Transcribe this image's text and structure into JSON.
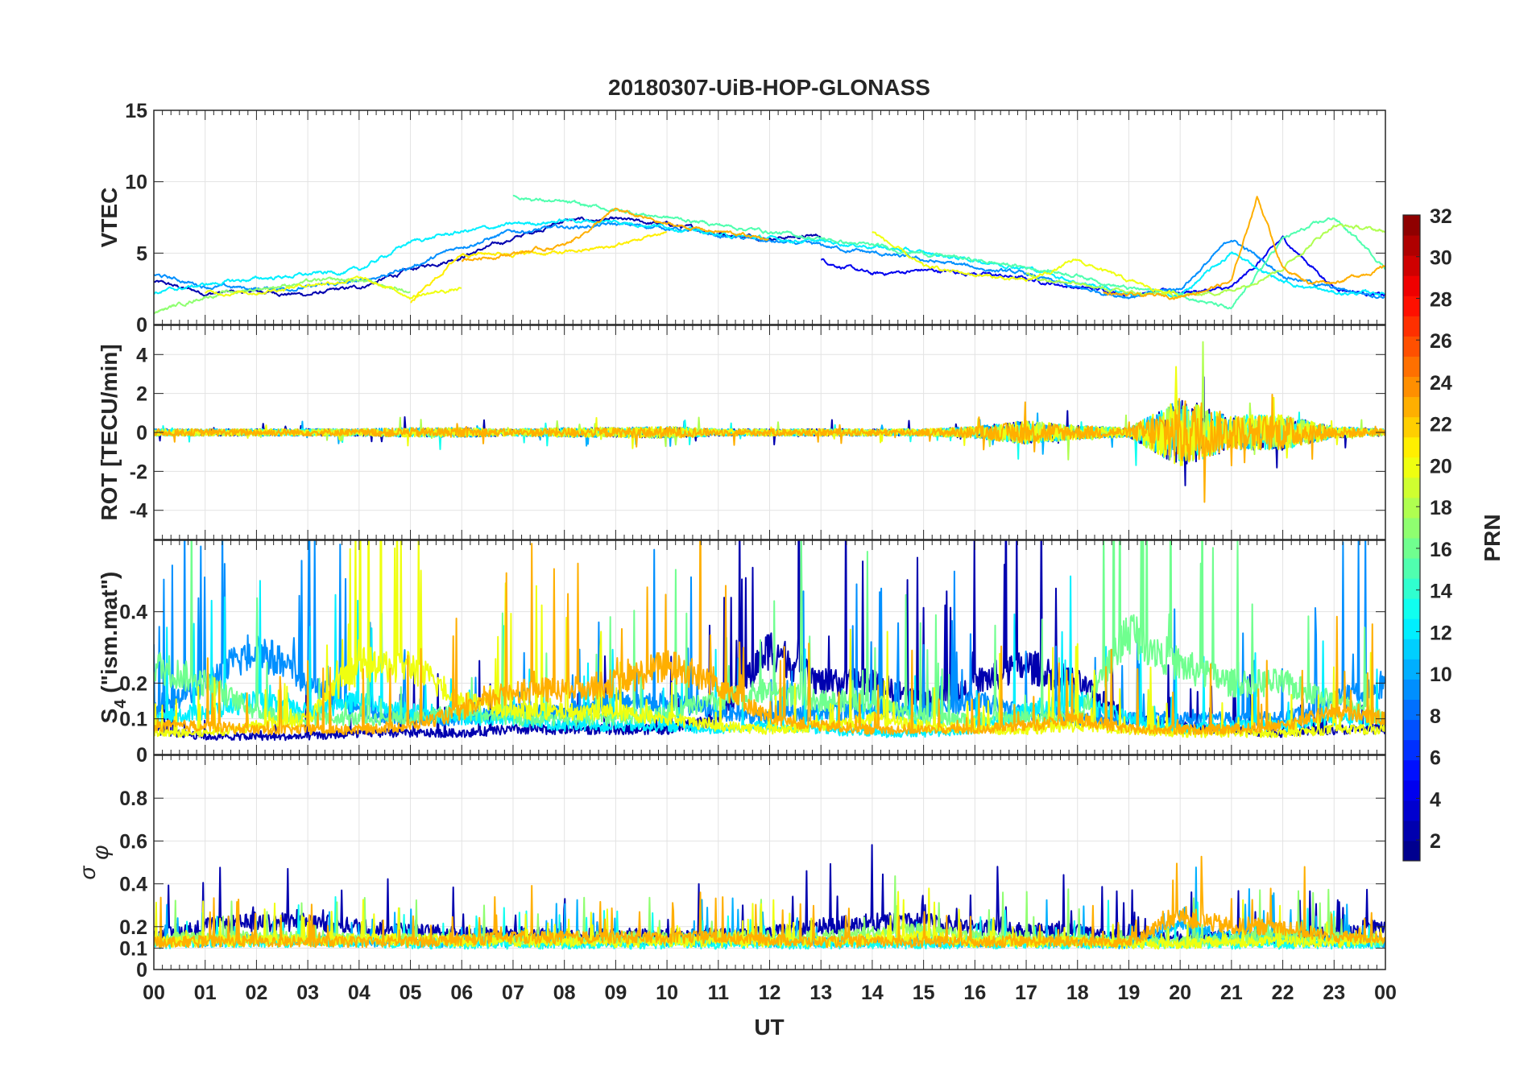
{
  "chart_data": {
    "type": "line",
    "title": "20180307-UiB-HOP-GLONASS",
    "xlabel": "UT",
    "x_range": [
      0,
      24
    ],
    "x_ticks": [
      "00",
      "01",
      "02",
      "03",
      "04",
      "05",
      "06",
      "07",
      "08",
      "09",
      "10",
      "11",
      "12",
      "13",
      "14",
      "15",
      "16",
      "17",
      "18",
      "19",
      "20",
      "21",
      "22",
      "23",
      "00"
    ],
    "grid": true,
    "colorbar": {
      "label": "PRN",
      "range": [
        1,
        32
      ],
      "colormap": "jet",
      "levels": 32,
      "ticks": [
        "2",
        "4",
        "6",
        "8",
        "10",
        "12",
        "14",
        "16",
        "18",
        "20",
        "22",
        "24",
        "26",
        "28",
        "30",
        "32"
      ],
      "placement": "right"
    },
    "panels": [
      {
        "name": "VTEC",
        "ylabel": "VTEC",
        "ylim": [
          0,
          15
        ],
        "yticks": [
          0,
          5,
          10,
          15
        ],
        "series": [
          {
            "prn": 2,
            "x0": 0,
            "dx": 1,
            "y": [
              3,
              2.2,
              2.3,
              2.1,
              2.6,
              3.8,
              4.8,
              6,
              7.3,
              7.3,
              7,
              6.4,
              6.1,
              6.2
            ]
          },
          {
            "prn": 4,
            "x0": 13,
            "dx": 1,
            "y": [
              4.5,
              3.5,
              3.8,
              3.6,
              3.2,
              2.6,
              2.2,
              2.3,
              2.5,
              6,
              2.6,
              2,
              2.2
            ]
          },
          {
            "prn": 9,
            "x0": 0,
            "dx": 1,
            "y": [
              3.5,
              2.7,
              2.5,
              2.6,
              3,
              4,
              5.5,
              6.5,
              6.8,
              7,
              6.8,
              6.2,
              5.8,
              5.5,
              5,
              4.5,
              4,
              3.5,
              2.5,
              2,
              2.5,
              6,
              3.5,
              2.5,
              2
            ]
          },
          {
            "prn": 12,
            "x0": 0,
            "dx": 1,
            "y": [
              2.2,
              2.8,
              3.2,
              3.5,
              3.8,
              5.8,
              6.5,
              7,
              7.3,
              7.2,
              6.9,
              6.3,
              6,
              5.8,
              5.5,
              5,
              4.5,
              4,
              3,
              2.2,
              2,
              5,
              3,
              2.2,
              2.2
            ]
          },
          {
            "prn": 15,
            "x0": 7,
            "dx": 1,
            "y": [
              9,
              8.5,
              8,
              7.5,
              7,
              6.5,
              6,
              5.5,
              5,
              4.5,
              4,
              3.5,
              2.5,
              2.2,
              1,
              6,
              7.5,
              4,
              2.6
            ]
          },
          {
            "prn": 17,
            "x0": 0,
            "dx": 1,
            "y": [
              0.8,
              2,
              2.5,
              3,
              3.1,
              2.3
            ]
          },
          {
            "prn": 18,
            "x0": 17,
            "dx": 1,
            "y": [
              3.5,
              2.8,
              2.2,
              2,
              2.4,
              4,
              7,
              6.5
            ]
          },
          {
            "prn": 20,
            "x0": 1,
            "dx": 1,
            "y": [
              2.2,
              2.3,
              2.8,
              3.2,
              2,
              2.5
            ]
          },
          {
            "prn": 21,
            "x0": 5,
            "dx": 1,
            "y": [
              1.5,
              5,
              5,
              5,
              5.5,
              6.5
            ]
          },
          {
            "prn": 20,
            "x0": 14,
            "dx": 1,
            "y": [
              6.5,
              4,
              3.5,
              3,
              4.5,
              3,
              2
            ]
          },
          {
            "prn": 23,
            "x0": 6,
            "dx": 1,
            "y": [
              4.5,
              5,
              5.5,
              8,
              7,
              6.5,
              6
            ]
          },
          {
            "prn": 23,
            "x0": 18.5,
            "dx": 0.5,
            "y": [
              2.2,
              2,
              2,
              2,
              2.5,
              3,
              9,
              4,
              3,
              3,
              3.5,
              4
            ]
          }
        ]
      },
      {
        "name": "ROT",
        "ylabel": "ROT [TECU/min]",
        "ylim": [
          -5.5,
          5.5
        ],
        "yticks": [
          -4,
          -2,
          0,
          2,
          4
        ],
        "envelope_hourly": [
          0.3,
          0.3,
          0.3,
          0.3,
          0.3,
          0.4,
          0.4,
          0.3,
          0.4,
          0.4,
          0.5,
          0.3,
          0.3,
          0.3,
          0.3,
          0.3,
          0.5,
          1,
          0.6,
          0.4,
          3,
          1.5,
          1.5,
          0.5,
          0.3
        ],
        "series_prns": [
          2,
          10,
          13,
          18,
          20,
          23
        ]
      },
      {
        "name": "S4",
        "ylabel": "S4 (\"ism.mat\")",
        "ylim": [
          0,
          0.6
        ],
        "yticks": [
          0,
          0.1,
          0.2,
          0.4
        ],
        "series": [
          {
            "prn": 2,
            "x0": 0,
            "dx": 1,
            "y": [
              0.07,
              0.05,
              0.05,
              0.05,
              0.06,
              0.06,
              0.06,
              0.07,
              0.07,
              0.07,
              0.07,
              0.1,
              0.3,
              0.2,
              0.2,
              0.15,
              0.2,
              0.25,
              0.2,
              0.1,
              0.08,
              0.07,
              0.06,
              0.07,
              0.07
            ]
          },
          {
            "prn": 9,
            "x0": 0,
            "dx": 1,
            "y": [
              0.12,
              0.2,
              0.3,
              0.2,
              0.12,
              0.1,
              0.1,
              0.12,
              0.12,
              0.15,
              0.15,
              0.12,
              0.1,
              0.12,
              0.12,
              0.12,
              0.15,
              0.12,
              0.1,
              0.1,
              0.1,
              0.1,
              0.1,
              0.15,
              0.2
            ]
          },
          {
            "prn": 12,
            "x0": 0,
            "dx": 1,
            "y": [
              0.1,
              0.12,
              0.15,
              0.12,
              0.15,
              0.12,
              0.1,
              0.1,
              0.08,
              0.08,
              0.08,
              0.07,
              0.08,
              0.07,
              0.06,
              0.06,
              0.07,
              0.12,
              0.15,
              0.1,
              0.07,
              0.08,
              0.08,
              0.1,
              0.1
            ]
          },
          {
            "prn": 16,
            "x0": 0,
            "dx": 1,
            "y": [
              0.25,
              0.2,
              0.12,
              0.1,
              0.1,
              0.1,
              0.12,
              0.1,
              0.1,
              0.1,
              0.12,
              0.15,
              0.18,
              0.15,
              0.15,
              0.1,
              0.1,
              0.1,
              0.1,
              0.35,
              0.25,
              0.2,
              0.2,
              0.15,
              0.1
            ]
          },
          {
            "prn": 20,
            "x0": 0,
            "dx": 1,
            "y": [
              0.06,
              0.06,
              0.08,
              0.1,
              0.25,
              0.25,
              0.15,
              0.12,
              0.12,
              0.12,
              0.1,
              0.08,
              0.07,
              0.08,
              0.1,
              0.08,
              0.07,
              0.07,
              0.08,
              0.07,
              0.06,
              0.06,
              0.06,
              0.07,
              0.07
            ]
          },
          {
            "prn": 23,
            "x0": 0,
            "dx": 1,
            "y": [
              0.08,
              0.08,
              0.07,
              0.07,
              0.07,
              0.08,
              0.12,
              0.18,
              0.18,
              0.2,
              0.25,
              0.2,
              0.1,
              0.08,
              0.07,
              0.07,
              0.07,
              0.08,
              0.1,
              0.07,
              0.07,
              0.07,
              0.08,
              0.12,
              0.1
            ]
          }
        ]
      },
      {
        "name": "sigma_phi",
        "ylabel": "σφ",
        "ylim": [
          0,
          1
        ],
        "yticks": [
          0,
          0.1,
          0.2,
          0.4,
          0.6,
          0.8
        ],
        "series": [
          {
            "prn": 2,
            "x0": 0,
            "dx": 1,
            "y": [
              0.15,
              0.2,
              0.22,
              0.22,
              0.2,
              0.18,
              0.17,
              0.17,
              0.16,
              0.16,
              0.16,
              0.16,
              0.17,
              0.2,
              0.22,
              0.22,
              0.2,
              0.18,
              0.18,
              0.15,
              0.15,
              0.15,
              0.15,
              0.18,
              0.2
            ]
          },
          {
            "prn": 10,
            "x0": 0,
            "dx": 1,
            "y": [
              0.13,
              0.13,
              0.14,
              0.14,
              0.13,
              0.13,
              0.13,
              0.13,
              0.13,
              0.13,
              0.13,
              0.13,
              0.13,
              0.13,
              0.13,
              0.13,
              0.13,
              0.13,
              0.13,
              0.12,
              0.2,
              0.15,
              0.14,
              0.13,
              0.13
            ]
          },
          {
            "prn": 13,
            "x0": 0,
            "dx": 1,
            "y": [
              0.12,
              0.13,
              0.13,
              0.13,
              0.13,
              0.12,
              0.12,
              0.12,
              0.12,
              0.12,
              0.12,
              0.12,
              0.12,
              0.12,
              0.12,
              0.12,
              0.12,
              0.12,
              0.12,
              0.12,
              0.12,
              0.12,
              0.12,
              0.12,
              0.12
            ]
          },
          {
            "prn": 17,
            "x0": 0,
            "dx": 1,
            "y": [
              0.14,
              0.15,
              0.15,
              0.15,
              0.14,
              0.14,
              0.14,
              0.14,
              0.15,
              0.15,
              0.15,
              0.15,
              0.16,
              0.15,
              0.17,
              0.18,
              0.15,
              0.15,
              0.14,
              0.13,
              0.13,
              0.14,
              0.16,
              0.15,
              0.14
            ]
          },
          {
            "prn": 20,
            "x0": 0,
            "dx": 1,
            "y": [
              0.13,
              0.13,
              0.14,
              0.14,
              0.14,
              0.14,
              0.13,
              0.13,
              0.13,
              0.13,
              0.13,
              0.13,
              0.13,
              0.13,
              0.14,
              0.15,
              0.13,
              0.13,
              0.13,
              0.12,
              0.12,
              0.13,
              0.13,
              0.13,
              0.13
            ]
          },
          {
            "prn": 23,
            "x0": 0,
            "dx": 1,
            "y": [
              0.13,
              0.13,
              0.13,
              0.13,
              0.13,
              0.13,
              0.14,
              0.15,
              0.15,
              0.15,
              0.15,
              0.15,
              0.14,
              0.13,
              0.13,
              0.13,
              0.13,
              0.13,
              0.13,
              0.13,
              0.25,
              0.2,
              0.2,
              0.15,
              0.15
            ]
          }
        ]
      }
    ]
  }
}
